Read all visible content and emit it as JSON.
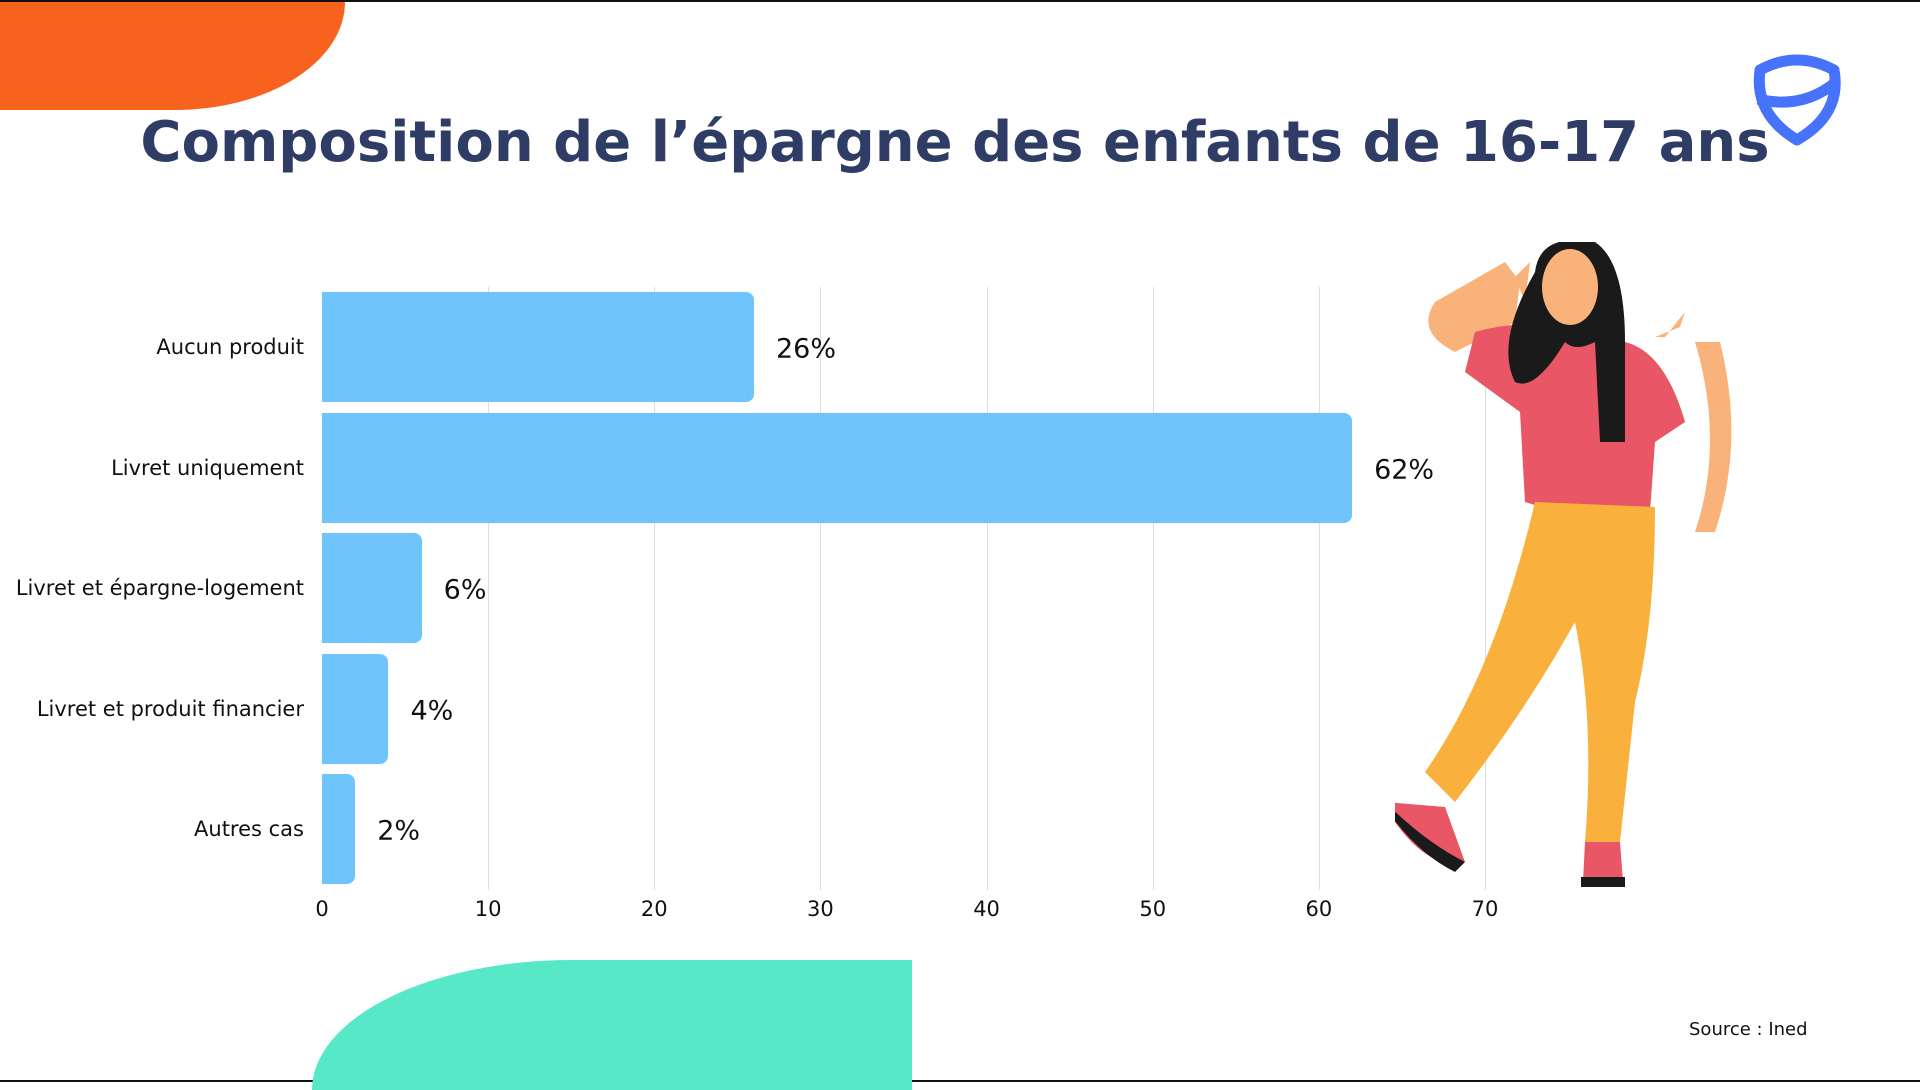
{
  "title": "Composition de l’épargne des enfants de 16-17 ans",
  "source": "Source : Ined",
  "colors": {
    "bar": "#70c4fc",
    "title": "#2e3c66",
    "orange": "#f7621e",
    "green": "#57e8c8",
    "logo": "#4772fb"
  },
  "chart_data": {
    "type": "bar",
    "orientation": "horizontal",
    "title": "Composition de l’épargne des enfants de 16-17 ans",
    "categories": [
      "Aucun produit",
      "Livret uniquement",
      "Livret et épargne-logement",
      "Livret et produit financier",
      "Autres cas"
    ],
    "values": [
      26,
      62,
      6,
      4,
      2
    ],
    "labels": [
      "26%",
      "62%",
      "6%",
      "4%",
      "2%"
    ],
    "xticks": [
      "0",
      "10",
      "20",
      "30",
      "40",
      "50",
      "60",
      "70"
    ],
    "xlim": [
      0,
      70
    ],
    "grid": true,
    "xlabel": "",
    "ylabel": ""
  }
}
